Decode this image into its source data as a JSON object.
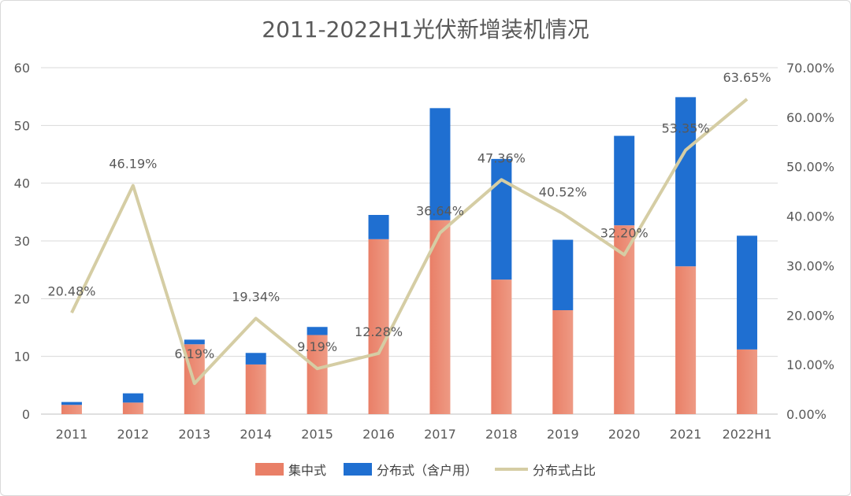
{
  "chart_data": {
    "type": "bar",
    "title": "2011-2022H1光伏新增装机情况",
    "categories": [
      "2011",
      "2012",
      "2013",
      "2014",
      "2015",
      "2016",
      "2017",
      "2018",
      "2019",
      "2020",
      "2021",
      "2022H1"
    ],
    "series": [
      {
        "name": "集中式",
        "values": [
          1.6,
          2.0,
          12.1,
          8.6,
          13.7,
          30.3,
          33.6,
          23.3,
          18.0,
          32.7,
          25.6,
          11.2
        ],
        "color": "#E97F67"
      },
      {
        "name": "分布式（含户用）",
        "values": [
          0.5,
          1.6,
          0.8,
          2.0,
          1.4,
          4.2,
          19.4,
          20.9,
          12.2,
          15.5,
          29.3,
          19.7
        ],
        "color": "#1F6FD1"
      }
    ],
    "line_series": {
      "name": "分布式占比",
      "values": [
        20.48,
        46.19,
        6.19,
        19.34,
        9.19,
        12.28,
        36.64,
        47.36,
        40.52,
        32.2,
        53.35,
        63.65
      ],
      "labels": [
        "20.48%",
        "46.19%",
        "6.19%",
        "19.34%",
        "9.19%",
        "12.28%",
        "36.64%",
        "47.36%",
        "40.52%",
        "32.20%",
        "53.35%",
        "63.65%"
      ],
      "color": "#D5CDA4"
    },
    "ylim": [
      0,
      60
    ],
    "yticks": [
      "0",
      "10",
      "20",
      "30",
      "40",
      "50",
      "60"
    ],
    "y2lim": [
      0,
      70
    ],
    "y2ticks": [
      "0.00%",
      "10.00%",
      "20.00%",
      "30.00%",
      "40.00%",
      "50.00%",
      "60.00%",
      "70.00%"
    ],
    "grid": true,
    "legend": "bottom"
  }
}
